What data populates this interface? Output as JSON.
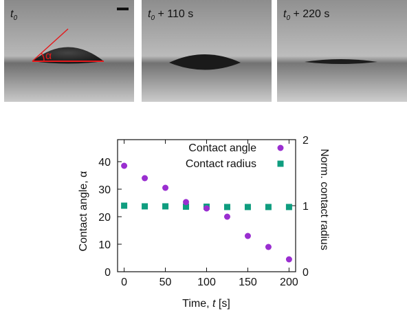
{
  "panels": [
    {
      "symbol": "t",
      "subscript": "0",
      "suffix": ""
    },
    {
      "symbol": "t",
      "subscript": "0",
      "suffix": " + 110 s"
    },
    {
      "symbol": "t",
      "subscript": "0",
      "suffix": " + 220 s"
    }
  ],
  "panel1_annotation": "α",
  "colors": {
    "contact_angle": "#9a2ed0",
    "contact_radius": "#0f9d7f",
    "annotation": "#e41a1c"
  },
  "chart_data": {
    "type": "scatter",
    "xlabel_prefix": "Time, ",
    "xlabel_var": "t",
    "xlabel_unit": " [s]",
    "ylabel_left": "Contact angle, α",
    "ylabel_right": "Norm. contact radius",
    "x_ticks": [
      "0",
      "50",
      "100",
      "150",
      "200"
    ],
    "y_left_ticks": [
      "0",
      "10",
      "20",
      "30",
      "40"
    ],
    "y_right_ticks": [
      "0",
      "1",
      "2"
    ],
    "xlim": [
      -8,
      208
    ],
    "ylim_left": [
      0,
      48
    ],
    "ylim_right": [
      0,
      2
    ],
    "legend_position": "top-right",
    "series": [
      {
        "name": "Contact angle",
        "axis": "left",
        "marker": "circle",
        "x": [
          0,
          25,
          50,
          75,
          100,
          125,
          150,
          175,
          200
        ],
        "y": [
          38.5,
          34,
          30.5,
          25.3,
          23,
          20,
          13,
          9,
          4.5
        ]
      },
      {
        "name": "Contact radius",
        "axis": "right",
        "marker": "square",
        "x": [
          0,
          25,
          50,
          75,
          100,
          125,
          150,
          175,
          200
        ],
        "y": [
          1.0,
          0.99,
          0.99,
          0.985,
          0.985,
          0.98,
          0.98,
          0.98,
          0.98
        ]
      }
    ]
  }
}
